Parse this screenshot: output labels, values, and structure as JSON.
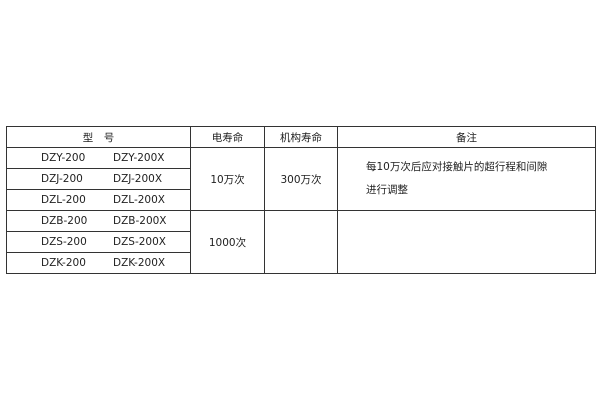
{
  "table": {
    "headers": [
      "型　号",
      "电寿命",
      "机构寿命",
      "备注"
    ],
    "models": [
      [
        "DZY-200",
        "DZY-200X"
      ],
      [
        "DZJ-200",
        "DZJ-200X"
      ],
      [
        "DZL-200",
        "DZL-200X"
      ],
      [
        "DZB-200",
        "DZB-200X"
      ],
      [
        "DZS-200",
        "DZS-200X"
      ],
      [
        "DZK-200",
        "DZK-200X"
      ]
    ],
    "groups": [
      {
        "electric_life": "10万次",
        "mechanical_life": "300万次",
        "note_lines": [
          "每10万次后应对接触片的超行程和间隙",
          "进行调整"
        ]
      },
      {
        "electric_life": "1000次",
        "mechanical_life": "",
        "note_lines": []
      }
    ]
  }
}
